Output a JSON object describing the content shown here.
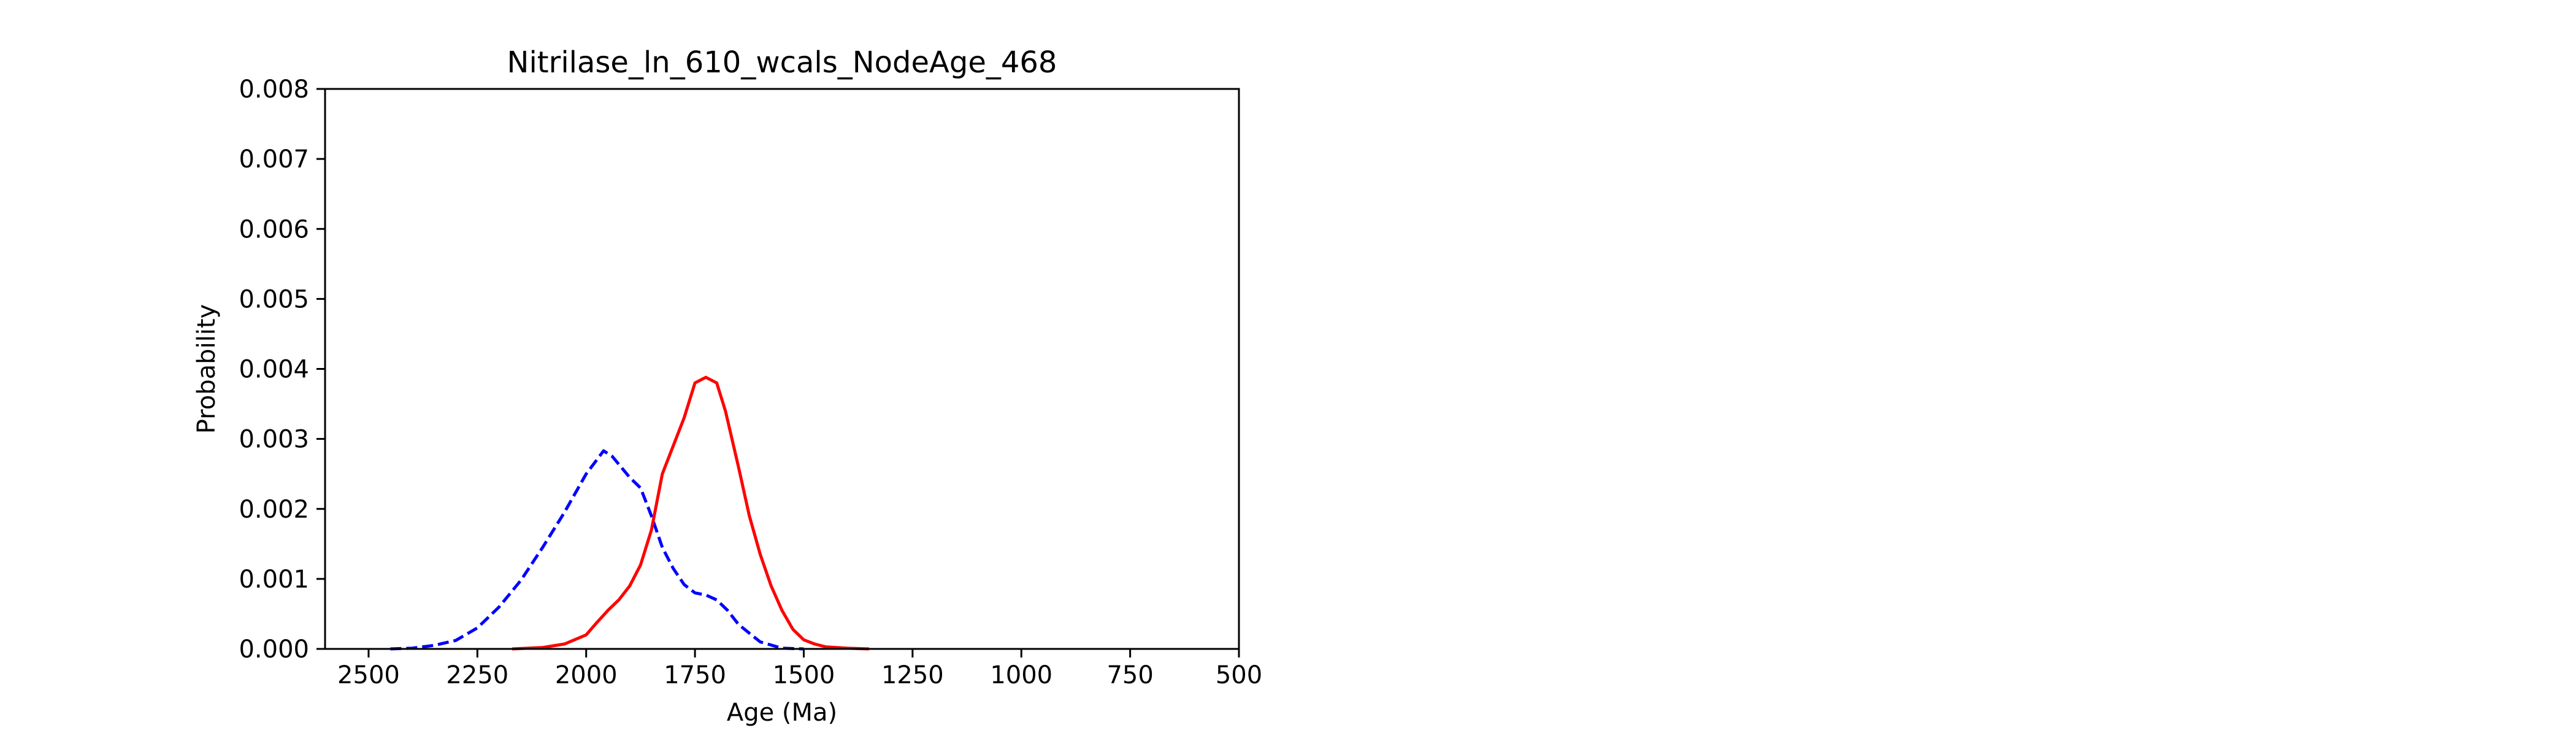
{
  "chart_data": {
    "type": "line",
    "title": "Nitrilase_ln_610_wcals_NodeAge_468",
    "xlabel": "Age (Ma)",
    "ylabel": "Probability",
    "xlim": [
      2600,
      500
    ],
    "x_inverted": true,
    "ylim": [
      0,
      0.008
    ],
    "x_ticks": [
      2500,
      2250,
      2000,
      1750,
      1500,
      1250,
      1000,
      750,
      500
    ],
    "x_tick_labels": [
      "2500",
      "2250",
      "2000",
      "1750",
      "1500",
      "1250",
      "1000",
      "750",
      "500"
    ],
    "y_ticks": [
      0,
      0.001,
      0.002,
      0.003,
      0.004,
      0.005,
      0.006,
      0.007,
      0.008
    ],
    "y_tick_labels": [
      "0.000",
      "0.001",
      "0.002",
      "0.003",
      "0.004",
      "0.005",
      "0.006",
      "0.007",
      "0.008"
    ],
    "grid": false,
    "legend": false,
    "series": [
      {
        "color": "#0000ff",
        "line_style": "dashed",
        "x": [
          2450,
          2400,
          2350,
          2300,
          2250,
          2200,
          2150,
          2100,
          2050,
          2000,
          1960,
          1940,
          1900,
          1875,
          1850,
          1825,
          1800,
          1775,
          1750,
          1725,
          1700,
          1675,
          1650,
          1600,
          1550,
          1500
        ],
        "y": [
          0.0,
          1e-05,
          5e-05,
          0.00012,
          0.0003,
          0.0006,
          0.00098,
          0.00145,
          0.00195,
          0.0025,
          0.00283,
          0.00275,
          0.00245,
          0.0023,
          0.0019,
          0.00145,
          0.00115,
          0.00092,
          0.0008,
          0.00077,
          0.0007,
          0.00055,
          0.00035,
          0.0001,
          1e-05,
          0.0
        ]
      },
      {
        "color": "#ff0000",
        "line_style": "solid",
        "x": [
          2170,
          2100,
          2050,
          2000,
          1975,
          1950,
          1925,
          1900,
          1875,
          1850,
          1825,
          1800,
          1775,
          1750,
          1725,
          1700,
          1680,
          1650,
          1625,
          1600,
          1575,
          1550,
          1525,
          1500,
          1475,
          1450,
          1400,
          1350
        ],
        "y": [
          0.0,
          2e-05,
          7e-05,
          0.0002,
          0.00038,
          0.00055,
          0.0007,
          0.0009,
          0.0012,
          0.0017,
          0.0025,
          0.0029,
          0.0033,
          0.0038,
          0.00388,
          0.0038,
          0.0034,
          0.0026,
          0.0019,
          0.00135,
          0.0009,
          0.00055,
          0.00028,
          0.00013,
          7e-05,
          3e-05,
          1e-05,
          0.0
        ]
      }
    ]
  }
}
